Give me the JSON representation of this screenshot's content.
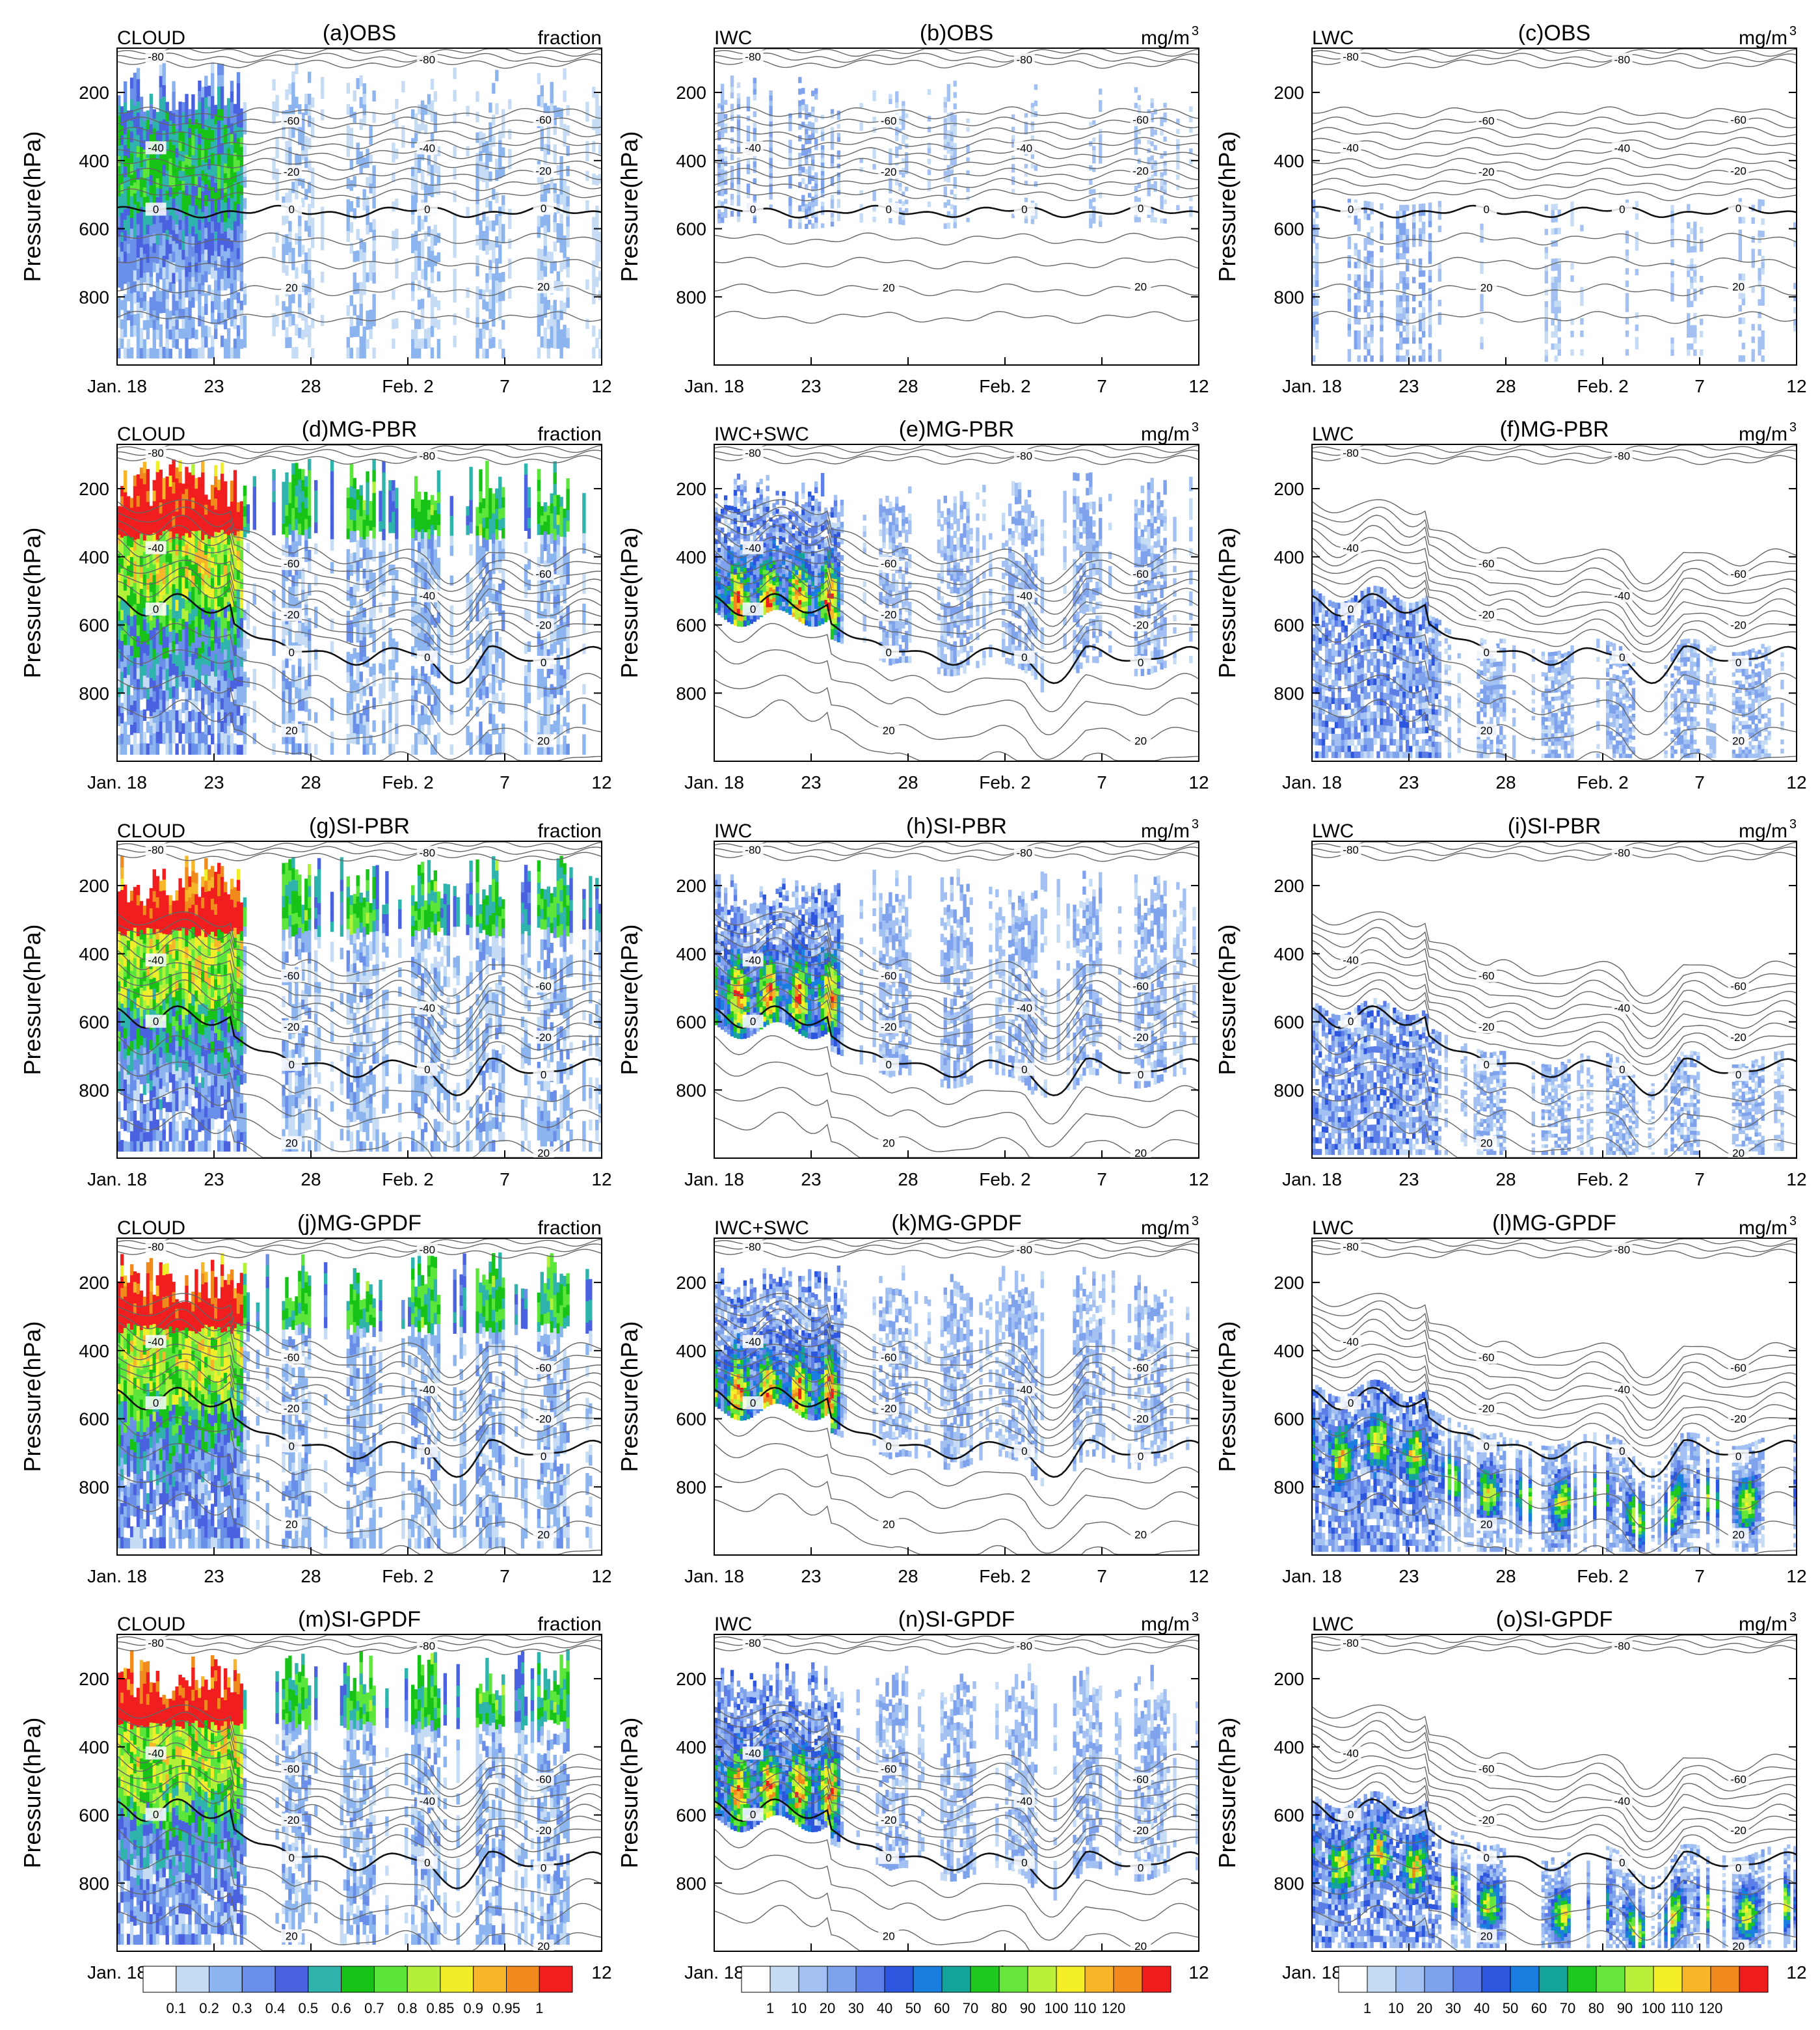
{
  "chart_data": {
    "type": "heatmap",
    "description_axes": {
      "x_tick_labels": [
        "Jan. 18",
        "23",
        "28",
        "Feb. 2",
        "7",
        "12"
      ],
      "x_tick_days": [
        18,
        23,
        28,
        33,
        38,
        43
      ],
      "x_range_days": [
        18,
        43
      ],
      "y_tick_labels": [
        "200",
        "400",
        "600",
        "800"
      ],
      "y_tick_values": [
        200,
        400,
        600,
        800
      ],
      "y_range_hPa": [
        70,
        1000
      ],
      "ylabel": "Pressure(hPa)"
    },
    "temperature_contour_labels": [
      "-80",
      "-60",
      "-40",
      "-20",
      "0",
      "20"
    ],
    "rows": [
      {
        "key": "obs",
        "panels": [
          {
            "id": "a",
            "title": "(a)OBS",
            "var": "CLOUD",
            "units": "fraction",
            "kind": "cloud"
          },
          {
            "id": "b",
            "title": "(b)OBS",
            "var": "IWC",
            "units": "mg/m",
            "kind": "iwc"
          },
          {
            "id": "c",
            "title": "(c)OBS",
            "var": "LWC",
            "units": "mg/m",
            "kind": "lwc"
          }
        ]
      },
      {
        "key": "mgpbr",
        "panels": [
          {
            "id": "d",
            "title": "(d)MG-PBR",
            "var": "CLOUD",
            "units": "fraction",
            "kind": "cloud"
          },
          {
            "id": "e",
            "title": "(e)MG-PBR",
            "var": "IWC+SWC",
            "units": "mg/m",
            "kind": "iwc"
          },
          {
            "id": "f",
            "title": "(f)MG-PBR",
            "var": "LWC",
            "units": "mg/m",
            "kind": "lwc"
          }
        ]
      },
      {
        "key": "sipbr",
        "panels": [
          {
            "id": "g",
            "title": "(g)SI-PBR",
            "var": "CLOUD",
            "units": "fraction",
            "kind": "cloud"
          },
          {
            "id": "h",
            "title": "(h)SI-PBR",
            "var": "IWC",
            "units": "mg/m",
            "kind": "iwc"
          },
          {
            "id": "i",
            "title": "(i)SI-PBR",
            "var": "LWC",
            "units": "mg/m",
            "kind": "lwc"
          }
        ]
      },
      {
        "key": "mggpdf",
        "panels": [
          {
            "id": "j",
            "title": "(j)MG-GPDF",
            "var": "CLOUD",
            "units": "fraction",
            "kind": "cloud"
          },
          {
            "id": "k",
            "title": "(k)MG-GPDF",
            "var": "IWC+SWC",
            "units": "mg/m",
            "kind": "iwc"
          },
          {
            "id": "l",
            "title": "(l)MG-GPDF",
            "var": "LWC",
            "units": "mg/m",
            "kind": "lwc"
          }
        ]
      },
      {
        "key": "sigpdf",
        "panels": [
          {
            "id": "m",
            "title": "(m)SI-GPDF",
            "var": "CLOUD",
            "units": "fraction",
            "kind": "cloud"
          },
          {
            "id": "n",
            "title": "(n)SI-GPDF",
            "var": "IWC",
            "units": "mg/m",
            "kind": "iwc"
          },
          {
            "id": "o",
            "title": "(o)SI-GPDF",
            "var": "LWC",
            "units": "mg/m",
            "kind": "lwc"
          }
        ]
      }
    ],
    "units_superscript": "3",
    "colorbars": {
      "fraction": {
        "labels": [
          "0.1",
          "0.2",
          "0.3",
          "0.4",
          "0.5",
          "0.6",
          "0.7",
          "0.8",
          "0.85",
          "0.9",
          "0.95",
          "1"
        ],
        "colors": [
          "#ffffff",
          "#c6dcf5",
          "#8cb4ef",
          "#6a8fe8",
          "#4a62e0",
          "#2fb3ad",
          "#16c316",
          "#5ce63c",
          "#b2f03a",
          "#f0ee2a",
          "#f7b52a",
          "#f08a1c",
          "#f01e1e"
        ]
      },
      "content": {
        "labels": [
          "1",
          "10",
          "20",
          "30",
          "40",
          "50",
          "60",
          "70",
          "80",
          "90",
          "100",
          "110",
          "120"
        ],
        "colors": [
          "#ffffff",
          "#c6dcf5",
          "#a2c1f2",
          "#7ea2ec",
          "#5d7ee6",
          "#2b56dd",
          "#1a7ee0",
          "#14a39a",
          "#1ec81e",
          "#66e63c",
          "#b8f03a",
          "#f5ef28",
          "#f8b52a",
          "#f08a1c",
          "#ee1c1c"
        ]
      }
    }
  }
}
